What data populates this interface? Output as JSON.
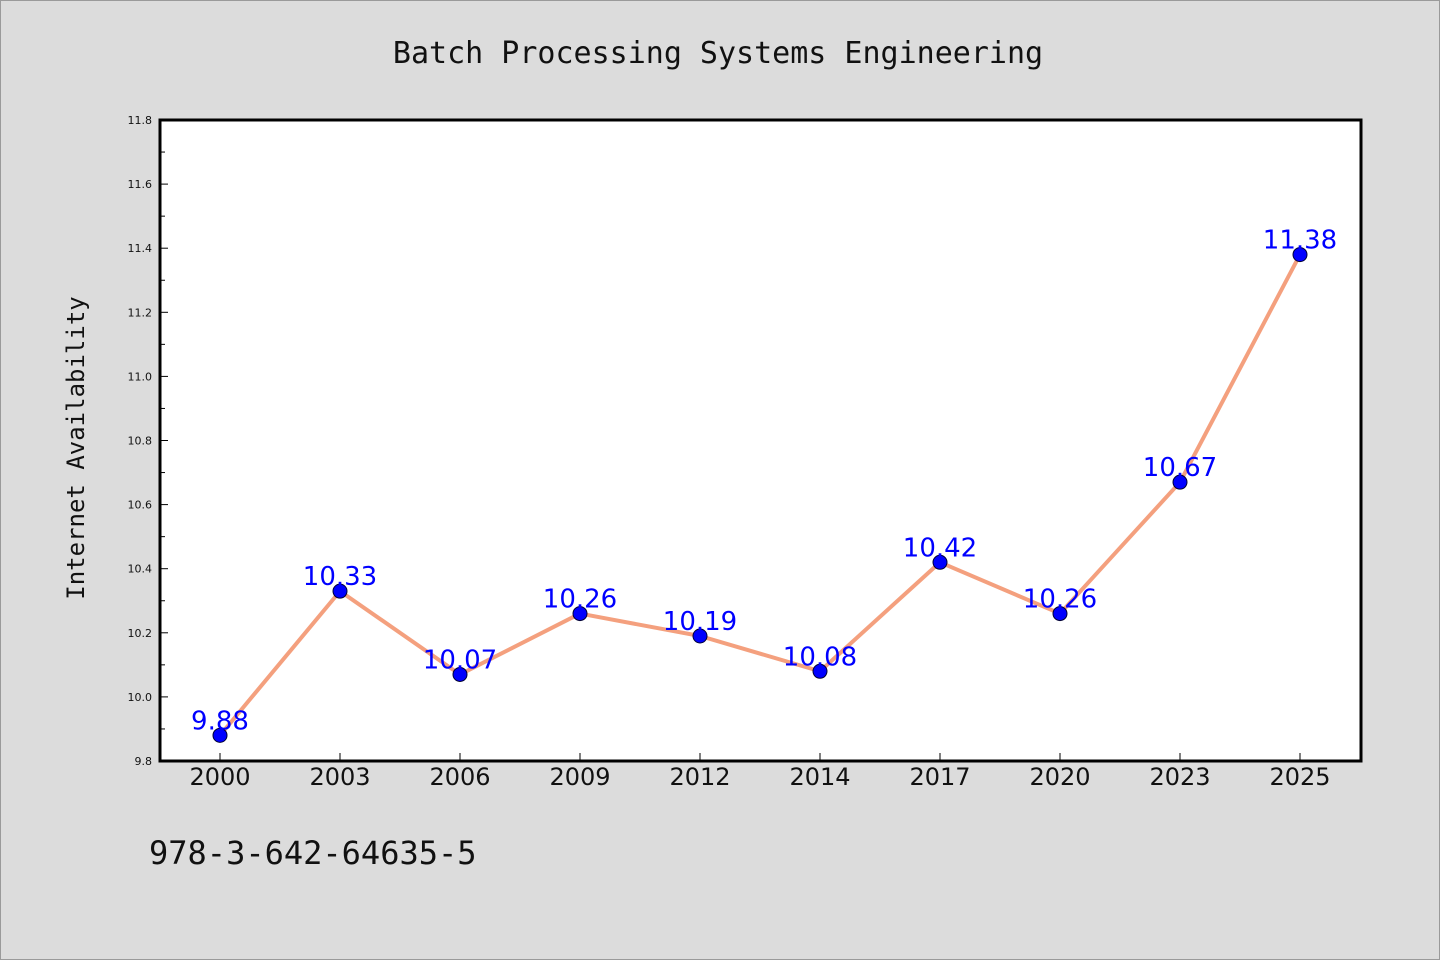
{
  "chart_data": {
    "type": "line",
    "title": "Batch Processing Systems Engineering",
    "xlabel": "",
    "ylabel": "Internet Availability",
    "categories": [
      "2000",
      "2003",
      "2006",
      "2009",
      "2012",
      "2014",
      "2017",
      "2020",
      "2023",
      "2025"
    ],
    "series": [
      {
        "values": [
          9.88,
          10.33,
          10.07,
          10.26,
          10.19,
          10.08,
          10.42,
          10.26,
          10.67,
          11.38
        ],
        "line_color": "#f4a07e",
        "marker_color": "#0000ff"
      }
    ],
    "data_labels": [
      "9.88",
      "10.33",
      "10.07",
      "10.26",
      "10.19",
      "10.08",
      "10.42",
      "10.26",
      "10.67",
      "11.38"
    ],
    "ylim": [
      9.8,
      11.8
    ],
    "yticks": [
      "9.8",
      "10.0",
      "10.2",
      "10.4",
      "10.6",
      "10.8",
      "11.0",
      "11.2",
      "11.4",
      "11.6",
      "11.8"
    ],
    "grid": false,
    "legend": "none",
    "label_color": "#0000ff",
    "plot_background": "#ffffff",
    "figure_background": "#dcdcdc"
  },
  "footer": {
    "isbn": "978-3-642-64635-5"
  }
}
